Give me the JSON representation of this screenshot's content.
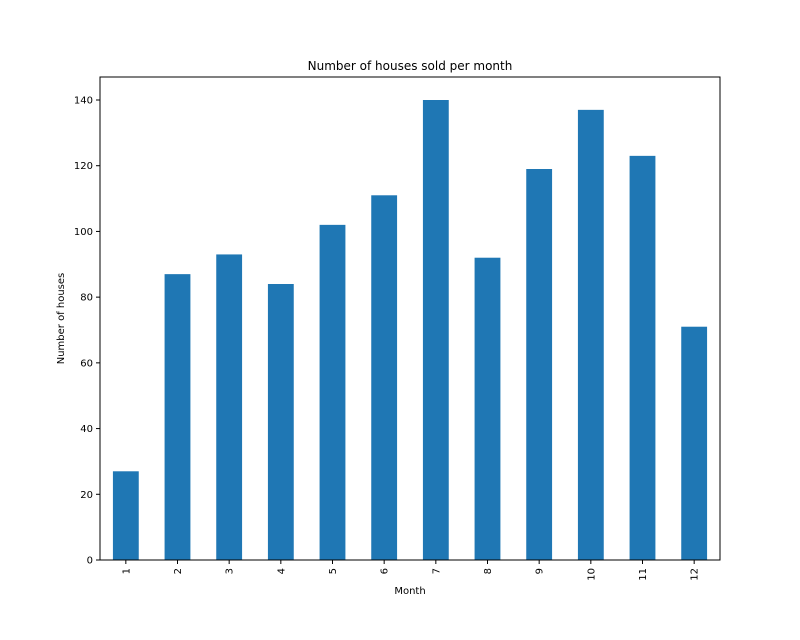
{
  "chart_data": {
    "type": "bar",
    "title": "Number of houses sold per month",
    "xlabel": "Month",
    "ylabel": "Number of houses",
    "categories": [
      "1",
      "2",
      "3",
      "4",
      "5",
      "6",
      "7",
      "8",
      "9",
      "10",
      "11",
      "12"
    ],
    "values": [
      27,
      87,
      93,
      84,
      102,
      111,
      140,
      92,
      119,
      137,
      123,
      71
    ],
    "ylim": [
      0,
      147
    ],
    "yticks": [
      0,
      20,
      40,
      60,
      80,
      100,
      120,
      140
    ],
    "grid": false,
    "bar_color": "#1f77b4"
  }
}
